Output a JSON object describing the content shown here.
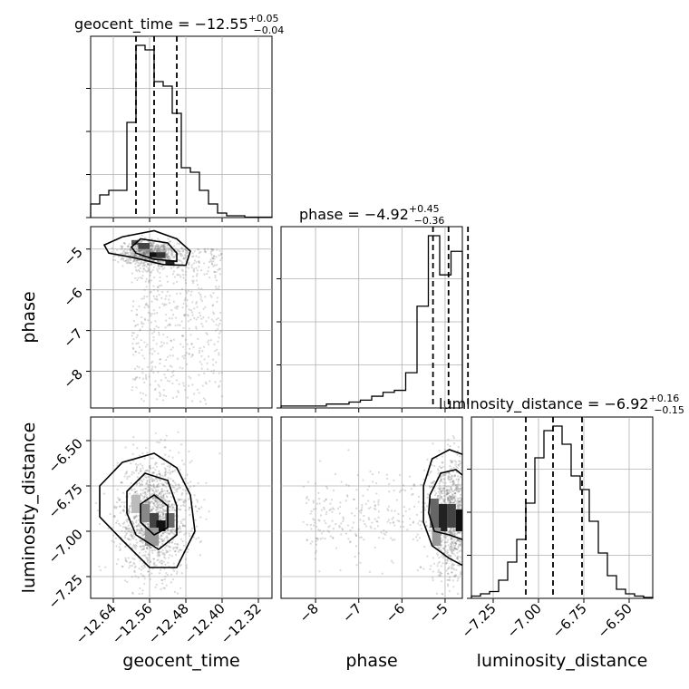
{
  "chart_data": {
    "type": "corner",
    "parameters": [
      {
        "name": "geocent_time",
        "axis_label": "geocent_time",
        "title_main": "geocent_time = −12.55",
        "title_plus": "+0.05",
        "title_minus": "−0.04",
        "range": [
          -12.69,
          -12.29
        ],
        "ticks": [
          -12.64,
          -12.56,
          -12.48,
          -12.4,
          -12.32
        ],
        "tick_labels": [
          "−12.64",
          "−12.56",
          "−12.48",
          "−12.40",
          "−12.32"
        ],
        "quantiles": [
          -12.59,
          -12.55,
          -12.5
        ],
        "hist_counts": [
          3,
          5,
          6,
          6,
          21,
          38,
          37,
          30,
          29,
          23,
          11,
          10,
          6,
          3,
          1,
          0.4,
          0.4,
          0.1,
          0.1,
          0.1
        ]
      },
      {
        "name": "phase",
        "axis_label": "phase",
        "title_main": "phase = −4.92",
        "title_plus": "+0.45",
        "title_minus": "−0.36",
        "range": [
          -8.8,
          -4.6
        ],
        "ticks": [
          -8,
          -7,
          -6,
          -5
        ],
        "tick_labels": [
          "−8",
          "−7",
          "−6",
          "−5"
        ],
        "quantiles": [
          -5.28,
          -4.92,
          -4.47
        ],
        "hist_counts": [
          0.5,
          0.5,
          0.5,
          0.5,
          1,
          1,
          1.5,
          2,
          3,
          4,
          4.5,
          9,
          26,
          44,
          34,
          40
        ]
      },
      {
        "name": "luminosity_distance",
        "axis_label": "luminosity_distance",
        "title_main": "luminosity_distance = −6.92",
        "title_plus": "+0.16",
        "title_minus": "−0.15",
        "range": [
          -7.37,
          -6.37
        ],
        "ticks": [
          -7.25,
          -7.0,
          -6.75,
          -6.5
        ],
        "tick_labels": [
          "−7.25",
          "−7.00",
          "−6.75",
          "−6.50"
        ],
        "quantiles": [
          -7.07,
          -6.92,
          -6.76
        ],
        "hist_counts": [
          0.5,
          1,
          1.5,
          4,
          8,
          13,
          21,
          31,
          37,
          38,
          34,
          27,
          24,
          17,
          10,
          5,
          2,
          1,
          0.5,
          0.2
        ]
      }
    ],
    "yaxis": {
      "phase": {
        "ticks": [
          -8,
          -7,
          -6,
          -5
        ],
        "tick_labels": [
          "−8",
          "−7",
          "−6",
          "−5"
        ],
        "range": [
          -8.9,
          -4.45
        ]
      },
      "luminosity_distance": {
        "ticks": [
          -7.25,
          -7.0,
          -6.75,
          -6.5
        ],
        "tick_labels": [
          "−7.25",
          "−7.00",
          "−6.75",
          "−6.50"
        ],
        "range": [
          -7.37,
          -6.37
        ]
      }
    },
    "grid": true
  }
}
